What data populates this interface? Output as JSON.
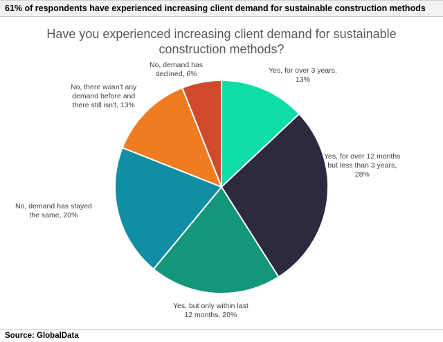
{
  "header": {
    "title": "61% of respondents have experienced increasing client demand for sustainable construction methods"
  },
  "footer": {
    "source": "Source: GlobalData"
  },
  "chart_data": {
    "type": "pie",
    "title_lines": [
      "Have you experienced increasing client demand for sustainable",
      "construction methods?"
    ],
    "legend": "none",
    "slices": [
      {
        "label_lines": [
          "Yes, for over 3 years,",
          "13%"
        ],
        "value": 13,
        "color": "#0fdda6"
      },
      {
        "label_lines": [
          "Yes, for over 12 months",
          "but less than 3 years,",
          "28%"
        ],
        "value": 28,
        "color": "#2b2a3f"
      },
      {
        "label_lines": [
          "Yes, but only within last",
          "12 months, 20%"
        ],
        "value": 20,
        "color": "#14967a"
      },
      {
        "label_lines": [
          "No, demand has stayed",
          "the same, 20%"
        ],
        "value": 20,
        "color": "#118ea3"
      },
      {
        "label_lines": [
          "No, there wasn't any",
          "demand before and",
          "there still isn't, 13%"
        ],
        "value": 13,
        "color": "#f07c22"
      },
      {
        "label_lines": [
          "No, demand has",
          "declined, 6%"
        ],
        "value": 6,
        "color": "#d04a2a"
      }
    ]
  }
}
